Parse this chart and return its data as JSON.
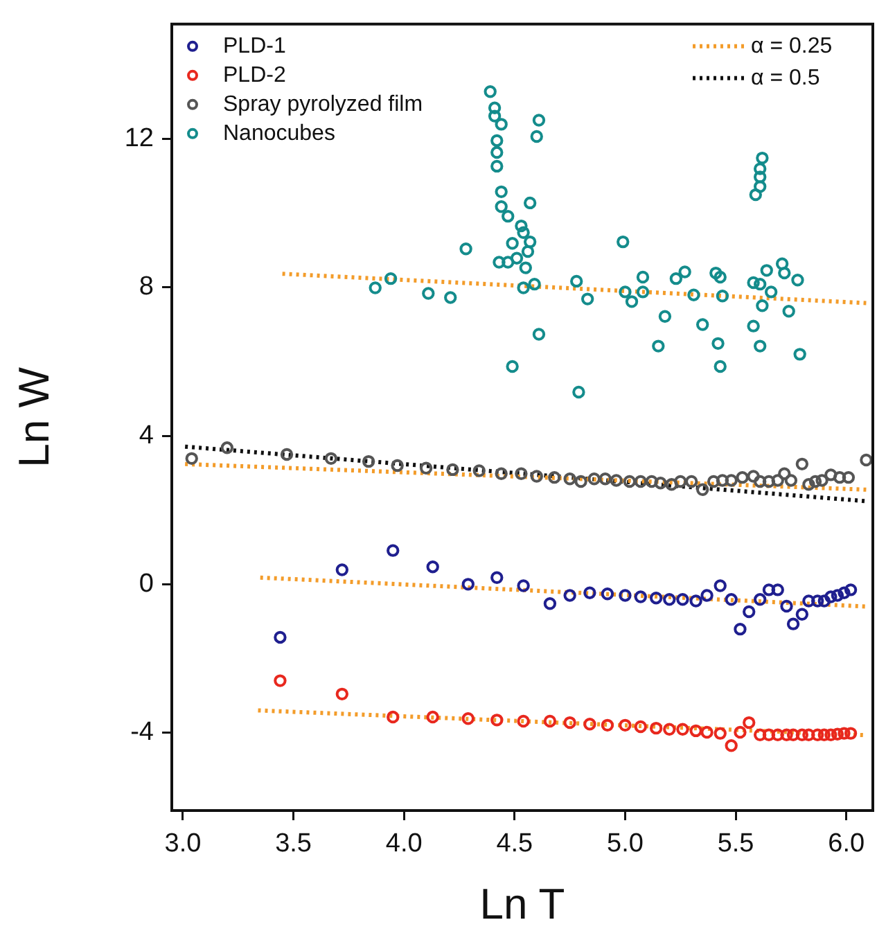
{
  "chart_data": {
    "type": "scatter",
    "xlabel": "Ln T",
    "ylabel": "Ln W",
    "xlim": [
      2.95,
      6.12
    ],
    "ylim": [
      -6.1,
      15.1
    ],
    "xticks": [
      {
        "value": 3,
        "label": "3.0"
      },
      {
        "value": 3.5,
        "label": "3.5"
      },
      {
        "value": 4,
        "label": "4.0"
      },
      {
        "value": 4.5,
        "label": "4.5"
      },
      {
        "value": 5,
        "label": "5.0"
      },
      {
        "value": 5.5,
        "label": "5.5"
      },
      {
        "value": 6,
        "label": "6.0"
      }
    ],
    "yticks": [
      -4,
      0,
      4,
      8,
      12
    ],
    "grid": false,
    "legend": "top",
    "line_style": "dotted",
    "series": [
      {
        "name": "PLD-1",
        "marker": "circle",
        "color": "#1f1f8f",
        "x": [
          3.44,
          3.72,
          3.95,
          4.13,
          4.29,
          4.42,
          4.54,
          4.66,
          4.75,
          4.84,
          4.92,
          5.0,
          5.07,
          5.14,
          5.2,
          5.26,
          5.32,
          5.37,
          5.43,
          5.48,
          5.52,
          5.56,
          5.61,
          5.65,
          5.69,
          5.73,
          5.76,
          5.8,
          5.83,
          5.87,
          5.9,
          5.93,
          5.96,
          5.99,
          6.02
        ],
        "values": [
          -1.43,
          0.39,
          0.91,
          0.47,
          0.0,
          0.18,
          -0.04,
          -0.52,
          -0.3,
          -0.23,
          -0.26,
          -0.3,
          -0.34,
          -0.37,
          -0.41,
          -0.41,
          -0.45,
          -0.3,
          -0.04,
          -0.41,
          -1.21,
          -0.74,
          -0.41,
          -0.15,
          -0.15,
          -0.59,
          -1.07,
          -0.81,
          -0.45,
          -0.45,
          -0.45,
          -0.34,
          -0.3,
          -0.23,
          -0.15
        ]
      },
      {
        "name": "PLD-2",
        "marker": "circle",
        "color": "#e8281e",
        "x": [
          3.44,
          3.72,
          3.95,
          4.13,
          4.29,
          4.42,
          4.54,
          4.66,
          4.75,
          4.84,
          4.92,
          5.0,
          5.07,
          5.14,
          5.2,
          5.26,
          5.32,
          5.37,
          5.43,
          5.48,
          5.52,
          5.56,
          5.61,
          5.65,
          5.69,
          5.73,
          5.76,
          5.8,
          5.83,
          5.87,
          5.9,
          5.93,
          5.96,
          5.99,
          6.02
        ],
        "values": [
          -2.6,
          -2.96,
          -3.58,
          -3.58,
          -3.62,
          -3.66,
          -3.69,
          -3.69,
          -3.73,
          -3.77,
          -3.8,
          -3.8,
          -3.84,
          -3.88,
          -3.91,
          -3.91,
          -3.95,
          -3.99,
          -4.02,
          -4.35,
          -3.99,
          -3.73,
          -4.06,
          -4.06,
          -4.06,
          -4.06,
          -4.06,
          -4.06,
          -4.06,
          -4.06,
          -4.06,
          -4.06,
          -4.04,
          -4.02,
          -4.02
        ]
      },
      {
        "name": "Spray pyrolyzed film",
        "marker": "circle",
        "color": "#555555",
        "x": [
          3.04,
          3.2,
          3.47,
          3.67,
          3.84,
          3.97,
          4.1,
          4.22,
          4.34,
          4.44,
          4.53,
          4.6,
          4.68,
          4.75,
          4.8,
          4.86,
          4.91,
          4.96,
          5.02,
          5.07,
          5.12,
          5.16,
          5.21,
          5.25,
          5.3,
          5.35,
          5.4,
          5.44,
          5.48,
          5.53,
          5.58,
          5.61,
          5.65,
          5.69,
          5.72,
          5.75,
          5.8,
          5.83,
          5.86,
          5.89,
          5.93,
          5.97,
          6.01,
          6.09
        ],
        "values": [
          3.39,
          3.68,
          3.5,
          3.39,
          3.31,
          3.2,
          3.13,
          3.09,
          3.06,
          2.98,
          2.98,
          2.91,
          2.88,
          2.84,
          2.77,
          2.84,
          2.84,
          2.8,
          2.77,
          2.77,
          2.77,
          2.73,
          2.69,
          2.77,
          2.77,
          2.55,
          2.77,
          2.8,
          2.8,
          2.88,
          2.91,
          2.77,
          2.77,
          2.8,
          2.98,
          2.8,
          3.24,
          2.69,
          2.77,
          2.8,
          2.95,
          2.88,
          2.88,
          3.35
        ]
      },
      {
        "name": "Nanocubes",
        "marker": "circle",
        "color": "#148c8c",
        "x": [
          3.87,
          3.94,
          4.11,
          4.21,
          4.28,
          4.39,
          4.41,
          4.41,
          4.44,
          4.61,
          4.6,
          4.42,
          4.42,
          4.42,
          4.44,
          4.44,
          4.47,
          4.57,
          4.53,
          4.54,
          4.57,
          4.49,
          4.56,
          4.43,
          4.47,
          4.51,
          4.55,
          4.54,
          4.59,
          4.61,
          4.49,
          4.79,
          4.78,
          4.83,
          4.99,
          5.0,
          5.03,
          5.08,
          5.08,
          5.18,
          5.15,
          5.23,
          5.27,
          5.31,
          5.35,
          5.41,
          5.43,
          5.44,
          5.42,
          5.43,
          5.58,
          5.61,
          5.58,
          5.61,
          5.64,
          5.66,
          5.62,
          5.71,
          5.72,
          5.78,
          5.74,
          5.79,
          5.62,
          5.61,
          5.61,
          5.61,
          5.59
        ],
        "values": [
          7.99,
          8.24,
          7.84,
          7.73,
          9.04,
          13.28,
          12.84,
          12.62,
          12.4,
          12.51,
          12.07,
          11.96,
          11.64,
          11.27,
          10.58,
          10.18,
          9.92,
          10.28,
          9.66,
          9.48,
          9.23,
          9.19,
          8.97,
          8.68,
          8.68,
          8.79,
          8.53,
          7.99,
          8.09,
          6.74,
          5.87,
          5.18,
          8.17,
          7.69,
          9.23,
          7.88,
          7.62,
          7.88,
          8.28,
          7.22,
          6.42,
          8.24,
          8.42,
          7.8,
          7.0,
          8.39,
          8.28,
          7.77,
          6.49,
          5.87,
          6.96,
          6.42,
          8.13,
          8.09,
          8.46,
          7.88,
          7.51,
          8.64,
          8.39,
          8.2,
          7.36,
          6.2,
          11.49,
          11.2,
          10.98,
          10.72,
          10.5
        ]
      },
      {
        "name": "α = 0.25",
        "type": "line",
        "color": "#f39c2a",
        "x": [
          3.45,
          6.09
        ],
        "values": [
          8.37,
          7.58
        ]
      },
      {
        "type": "line",
        "color": "#f39c2a",
        "x": [
          3.01,
          6.09
        ],
        "values": [
          3.24,
          2.55
        ]
      },
      {
        "name": "α = 0.5",
        "type": "line",
        "color": "#111111",
        "x": [
          3.01,
          6.09
        ],
        "values": [
          3.71,
          2.24
        ]
      },
      {
        "type": "line",
        "color": "#f39c2a",
        "x": [
          3.35,
          6.09
        ],
        "values": [
          0.18,
          -0.6
        ]
      },
      {
        "type": "line",
        "color": "#f39c2a",
        "x": [
          3.34,
          6.09
        ],
        "values": [
          -3.4,
          -4.07
        ]
      }
    ]
  }
}
